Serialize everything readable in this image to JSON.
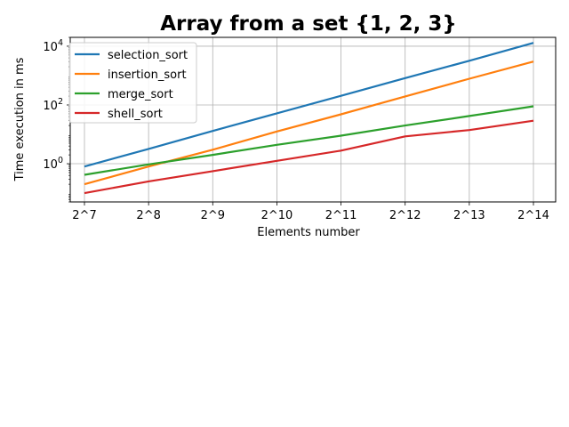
{
  "chart_data": {
    "type": "line",
    "title": "Array from a set {1, 2, 3}",
    "xlabel": "Elements number",
    "ylabel": "Time execution in ms",
    "categories": [
      "2^7",
      "2^8",
      "2^9",
      "2^10",
      "2^11",
      "2^12",
      "2^13",
      "2^14"
    ],
    "yscale": "log",
    "ylim": [
      0.05,
      20000
    ],
    "yticks": [
      {
        "base": "10",
        "exp": "0",
        "value": 1
      },
      {
        "base": "10",
        "exp": "2",
        "value": 100
      },
      {
        "base": "10",
        "exp": "4",
        "value": 10000
      }
    ],
    "grid": true,
    "legend_position": "top-left",
    "series": [
      {
        "name": "selection_sort",
        "color": "#1f77b4",
        "values": [
          0.8,
          3.2,
          13,
          52,
          205,
          820,
          3200,
          13000
        ]
      },
      {
        "name": "insertion_sort",
        "color": "#ff7f0e",
        "values": [
          0.2,
          0.8,
          3,
          12.5,
          48,
          195,
          780,
          3000
        ]
      },
      {
        "name": "merge_sort",
        "color": "#2ca02c",
        "values": [
          0.42,
          0.95,
          2,
          4.4,
          9,
          20,
          42,
          90
        ]
      },
      {
        "name": "shell_sort",
        "color": "#d62728",
        "values": [
          0.1,
          0.25,
          0.56,
          1.25,
          2.8,
          8.5,
          14,
          29
        ]
      }
    ]
  }
}
